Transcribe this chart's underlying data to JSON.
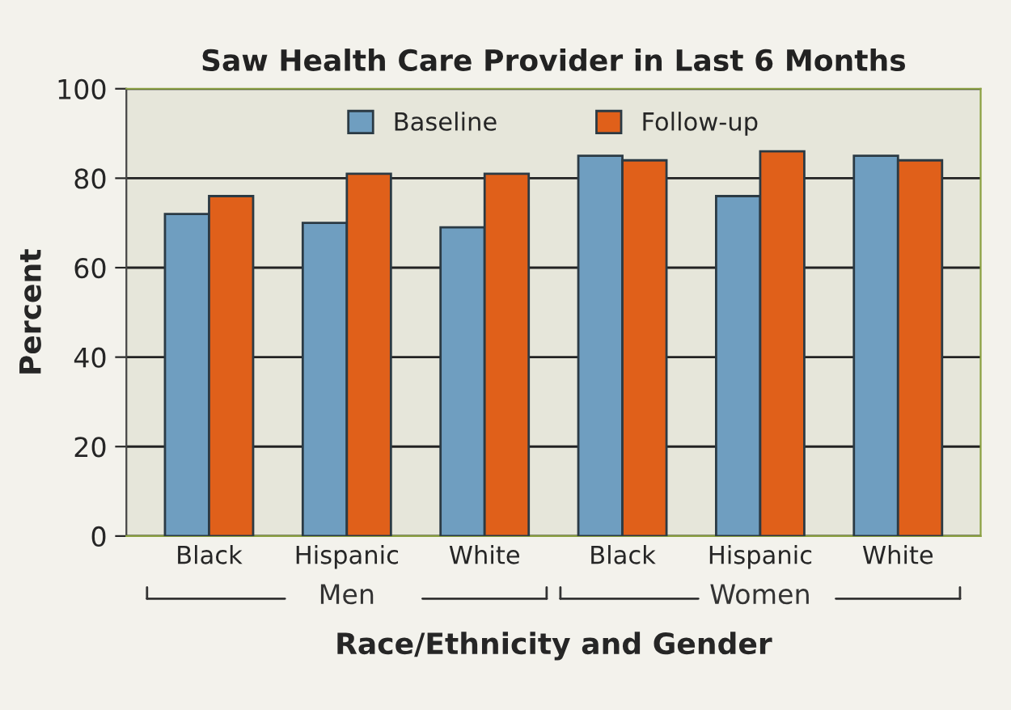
{
  "chart_data": {
    "type": "bar",
    "title": "Saw Health Care Provider in Last 6 Months",
    "xlabel": "Race/Ethnicity and Gender",
    "ylabel": "Percent",
    "categories": [
      "Black",
      "Hispanic",
      "White",
      "Black",
      "Hispanic",
      "White"
    ],
    "series": [
      {
        "name": "Baseline",
        "color": "#6f9ec0",
        "values": [
          72,
          70,
          69,
          85,
          76,
          85
        ]
      },
      {
        "name": "Follow-up",
        "color": "#e0601a",
        "values": [
          76,
          81,
          81,
          84,
          86,
          84
        ]
      }
    ],
    "annotations": [
      "Men",
      "Women"
    ],
    "ylim": [
      0,
      100
    ],
    "yticks": [
      0,
      20,
      40,
      60,
      80,
      100
    ],
    "grid": "y",
    "legend": "top"
  }
}
